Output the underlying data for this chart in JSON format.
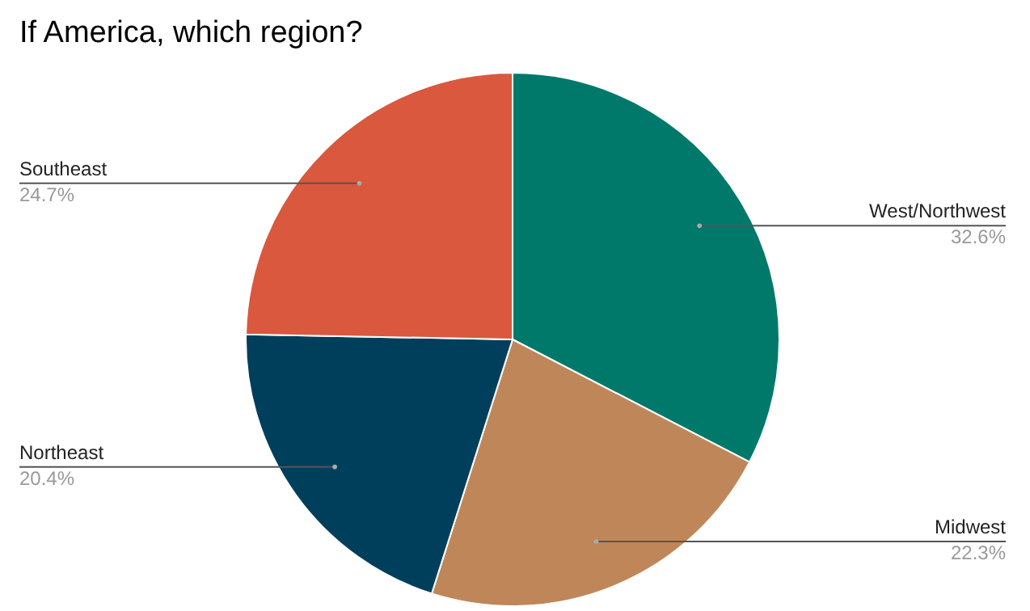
{
  "chart_data": {
    "type": "pie",
    "title": "If America, which region?",
    "categories": [
      "West/Northwest",
      "Midwest",
      "Northeast",
      "Southeast"
    ],
    "values": [
      32.6,
      22.3,
      20.4,
      24.7
    ],
    "colors": [
      "#00796b",
      "#bf8759",
      "#003f5c",
      "#d9583e"
    ],
    "value_labels": [
      "32.6%",
      "22.3%",
      "20.4%",
      "24.7%"
    ],
    "legend": false
  }
}
